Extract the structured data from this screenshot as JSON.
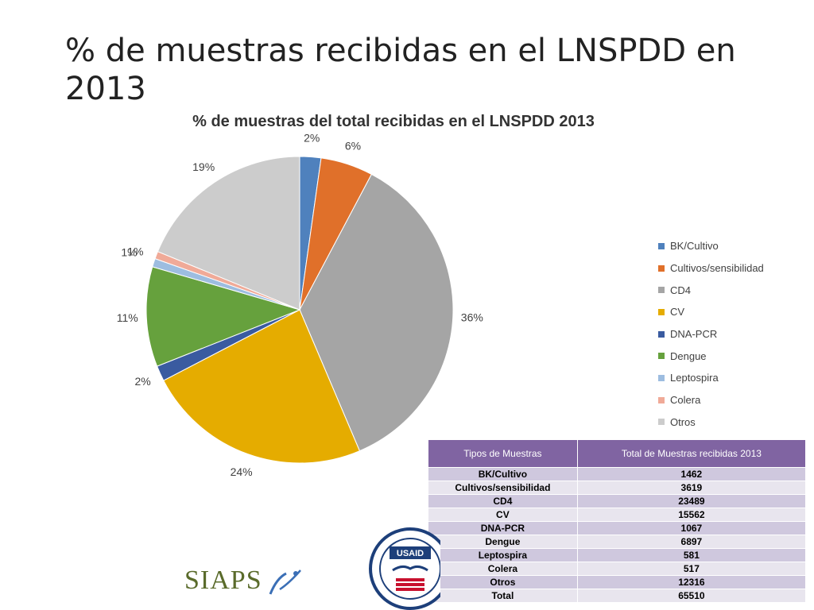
{
  "slide": {
    "title": "% de muestras recibidas en el LNSPDD en 2013",
    "logo_text": "SIAPS",
    "seal_text": "USAID"
  },
  "chart_data": {
    "type": "pie",
    "title": "% de muestras del total recibidas en el LNSPDD 2013",
    "categories": [
      "BK/Cultivo",
      "Cultivos/sensibilidad",
      "CD4",
      "CV",
      "DNA-PCR",
      "Dengue",
      "Leptospira",
      "Colera",
      "Otros"
    ],
    "values": [
      1462,
      3619,
      23489,
      15562,
      1067,
      6897,
      581,
      517,
      12316
    ],
    "data_labels": [
      "2%",
      "6%",
      "36%",
      "24%",
      "2%",
      "11%",
      "1%",
      "1%",
      "19%"
    ],
    "colors": [
      "#4f81bd",
      "#e0702a",
      "#a5a5a5",
      "#e5ac00",
      "#3a5ba0",
      "#66a13d",
      "#9dbde0",
      "#f0aa98",
      "#cccccc"
    ],
    "legend": "right"
  },
  "table": {
    "headers": [
      "Tipos de Muestras",
      "Total de Muestras recibidas 2013"
    ],
    "rows": [
      [
        "BK/Cultivo",
        "1462"
      ],
      [
        "Cultivos/sensibilidad",
        "3619"
      ],
      [
        "CD4",
        "23489"
      ],
      [
        "CV",
        "15562"
      ],
      [
        "DNA-PCR",
        "1067"
      ],
      [
        "Dengue",
        "6897"
      ],
      [
        "Leptospira",
        "581"
      ],
      [
        "Colera",
        "517"
      ],
      [
        "Otros",
        "12316"
      ],
      [
        "Total",
        "65510"
      ]
    ]
  }
}
